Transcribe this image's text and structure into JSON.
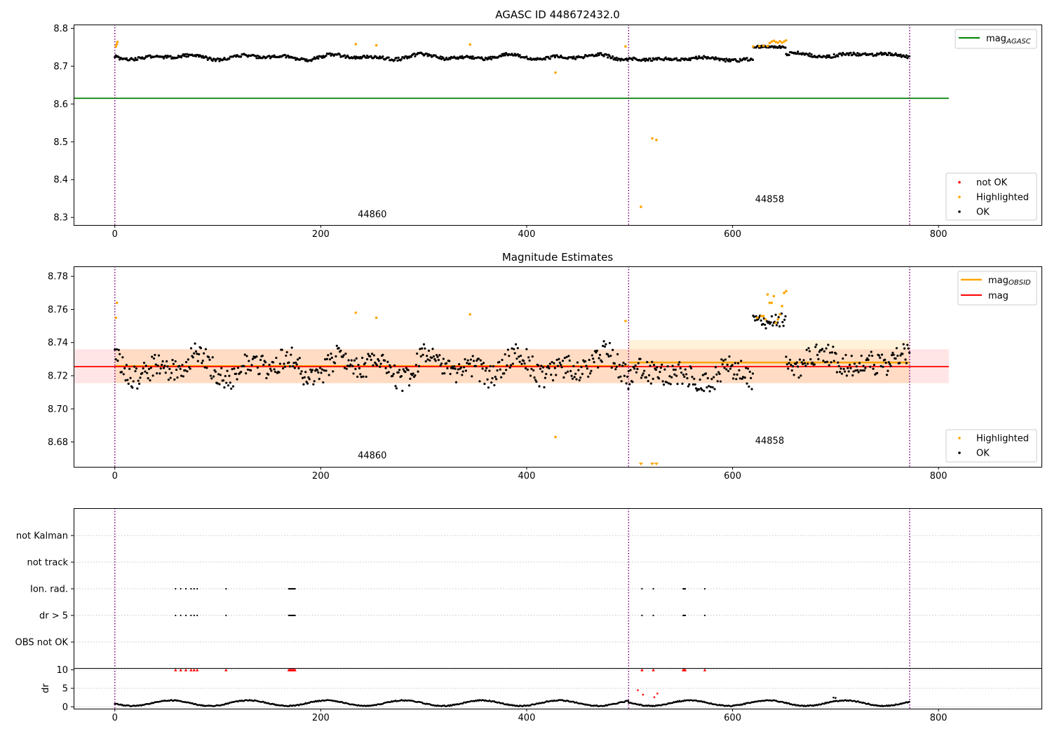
{
  "figure_colors": {
    "ok": "#000000",
    "highlighted": "#FFA500",
    "not_ok": "#FF0000",
    "mag_agasc": "#008000",
    "mag_obsid": "#FFA500",
    "mag": "#FF0000",
    "obsid_line": "#800080"
  },
  "chart_data": [
    {
      "type": "scatter",
      "title": "AGASC ID 448672432.0",
      "xlim": [
        -40,
        900
      ],
      "ylim": [
        8.28,
        8.81
      ],
      "x_ticks": [
        "0",
        "200",
        "400",
        "600",
        "800"
      ],
      "y_ticks": [
        "8.3",
        "8.4",
        "8.5",
        "8.6",
        "8.7",
        "8.8"
      ],
      "obsid_boundaries": [
        0,
        499,
        772
      ],
      "obsid_labels": [
        {
          "text": "44860",
          "x": 250,
          "y": 8.3
        },
        {
          "text": "44858",
          "x": 636,
          "y": 8.34
        }
      ],
      "mag_agasc": {
        "value": 8.615,
        "x_range": [
          -40,
          810
        ]
      },
      "series_legend": [
        "not OK",
        "Highlighted",
        "OK"
      ],
      "line_legend_label": "mag",
      "line_legend_sub": "AGASC",
      "ok_bands": [
        {
          "x0": 0,
          "x1": 499,
          "y_base": 8.724,
          "y_amp": 0.008,
          "y_noise": 0.004,
          "seed": 3
        },
        {
          "x0": 499,
          "x1": 620,
          "y_base": 8.719,
          "y_amp": 0.005,
          "y_noise": 0.004,
          "seed": 7
        },
        {
          "x0": 620,
          "x1": 652,
          "y_base": 8.752,
          "y_amp": 0.003,
          "y_noise": 0.003,
          "seed": 11
        },
        {
          "x0": 652,
          "x1": 772,
          "y_base": 8.73,
          "y_amp": 0.006,
          "y_noise": 0.004,
          "seed": 13
        }
      ],
      "highlighted_points": [
        [
          1,
          8.752
        ],
        [
          2,
          8.758
        ],
        [
          2.5,
          8.764
        ],
        [
          234,
          8.758
        ],
        [
          254,
          8.755
        ],
        [
          345,
          8.757
        ],
        [
          428,
          8.683
        ],
        [
          496,
          8.752
        ],
        [
          511,
          8.328
        ],
        [
          522,
          8.509
        ],
        [
          526,
          8.505
        ],
        [
          620,
          8.752
        ],
        [
          626,
          8.753
        ],
        [
          630,
          8.754
        ],
        [
          634,
          8.753
        ],
        [
          636,
          8.761
        ],
        [
          638,
          8.765
        ],
        [
          640,
          8.767
        ],
        [
          642,
          8.764
        ],
        [
          644,
          8.762
        ],
        [
          646,
          8.766
        ],
        [
          648,
          8.762
        ],
        [
          650,
          8.765
        ],
        [
          652,
          8.768
        ]
      ]
    },
    {
      "type": "scatter",
      "title": "Magnitude Estimates",
      "xlim": [
        -40,
        900
      ],
      "ylim": [
        8.665,
        8.786
      ],
      "x_ticks": [
        "0",
        "200",
        "400",
        "600",
        "800"
      ],
      "y_ticks": [
        "8.68",
        "8.70",
        "8.72",
        "8.74",
        "8.76",
        "8.78"
      ],
      "obsid_boundaries": [
        0,
        499,
        772
      ],
      "obsid_labels": [
        {
          "text": "44860",
          "x": 250,
          "y": 8.67
        },
        {
          "text": "44858",
          "x": 636,
          "y": 8.679
        }
      ],
      "mag": {
        "value": 8.7255,
        "band": [
          8.7155,
          8.736
        ],
        "x_range": [
          -40,
          810
        ]
      },
      "mag_obsid": [
        {
          "value": 8.7258,
          "band": [
            8.7155,
            8.736
          ],
          "x_range": [
            0,
            499
          ]
        },
        {
          "value": 8.728,
          "band": [
            8.7155,
            8.7415
          ],
          "x_range": [
            499,
            772
          ]
        }
      ],
      "series_legend": [
        "Highlighted",
        "OK"
      ],
      "line_legend_labels": [
        "mag",
        "mag"
      ],
      "line_legend_sub": "OBSID",
      "ok_bands": [
        {
          "x0": 0,
          "x1": 499,
          "y_base": 8.7255,
          "y_amp": 0.009,
          "y_noise": 0.007,
          "seed": 21
        },
        {
          "x0": 499,
          "x1": 620,
          "y_base": 8.72,
          "y_amp": 0.006,
          "y_noise": 0.007,
          "seed": 23
        },
        {
          "x0": 620,
          "x1": 652,
          "y_base": 8.752,
          "y_amp": 0.004,
          "y_noise": 0.004,
          "seed": 27
        },
        {
          "x0": 652,
          "x1": 772,
          "y_base": 8.729,
          "y_amp": 0.006,
          "y_noise": 0.007,
          "seed": 29
        }
      ],
      "highlighted_points": [
        [
          1,
          8.755
        ],
        [
          2,
          8.764
        ],
        [
          234,
          8.758
        ],
        [
          254,
          8.755
        ],
        [
          345,
          8.757
        ],
        [
          428,
          8.683
        ],
        [
          496,
          8.753
        ],
        [
          624,
          8.755
        ],
        [
          628,
          8.756
        ],
        [
          630,
          8.756
        ],
        [
          632,
          8.754
        ],
        [
          634,
          8.769
        ],
        [
          636,
          8.764
        ],
        [
          638,
          8.764
        ],
        [
          640,
          8.768
        ],
        [
          642,
          8.752
        ],
        [
          644,
          8.754
        ],
        [
          646,
          8.757
        ],
        [
          648,
          8.762
        ],
        [
          650,
          8.77
        ],
        [
          652,
          8.771
        ]
      ],
      "offscale_markers": [
        511,
        522,
        526
      ]
    },
    {
      "type": "scatter",
      "title": "",
      "xlim": [
        -40,
        900
      ],
      "ylim": [
        0,
        6
      ],
      "y_categories": [
        "not Kalman",
        "not track",
        "Ion. rad.",
        "dr > 5",
        "OBS not OK"
      ],
      "flag_points": {
        "Ion. rad.": [
          59,
          64,
          69,
          74,
          77,
          80,
          108,
          169,
          170,
          171,
          172,
          173,
          174,
          175,
          512,
          523,
          552,
          553,
          554,
          573
        ],
        "dr > 5": [
          59,
          64,
          69,
          74,
          77,
          80,
          108,
          169,
          170,
          171,
          172,
          173,
          174,
          175,
          512,
          523,
          552,
          553,
          554,
          573
        ]
      },
      "obsid_boundaries": [
        0,
        499,
        772
      ]
    },
    {
      "type": "scatter",
      "title": "",
      "xlim": [
        -40,
        900
      ],
      "ylim": [
        -0.5,
        10.5
      ],
      "ylabel": "dr",
      "x_ticks": [
        "0",
        "200",
        "400",
        "600",
        "800"
      ],
      "y_ticks": [
        "0",
        "5",
        "10"
      ],
      "dr_segments": [
        {
          "x0": 0,
          "x1": 499,
          "seed": 41
        },
        {
          "x0": 499,
          "x1": 772,
          "seed": 43
        }
      ],
      "capped_points": [
        59,
        64,
        69,
        74,
        77,
        80,
        108,
        169,
        170,
        171,
        172,
        173,
        174,
        175,
        512,
        523,
        552,
        553,
        554,
        573
      ],
      "extra_points": [
        [
          508,
          4.5
        ],
        [
          513,
          3.3
        ],
        [
          524,
          2.6
        ],
        [
          527,
          3.6
        ],
        [
          698,
          2.5
        ],
        [
          700,
          2.4
        ]
      ],
      "obsid_boundaries": [
        0,
        499,
        772
      ]
    }
  ]
}
